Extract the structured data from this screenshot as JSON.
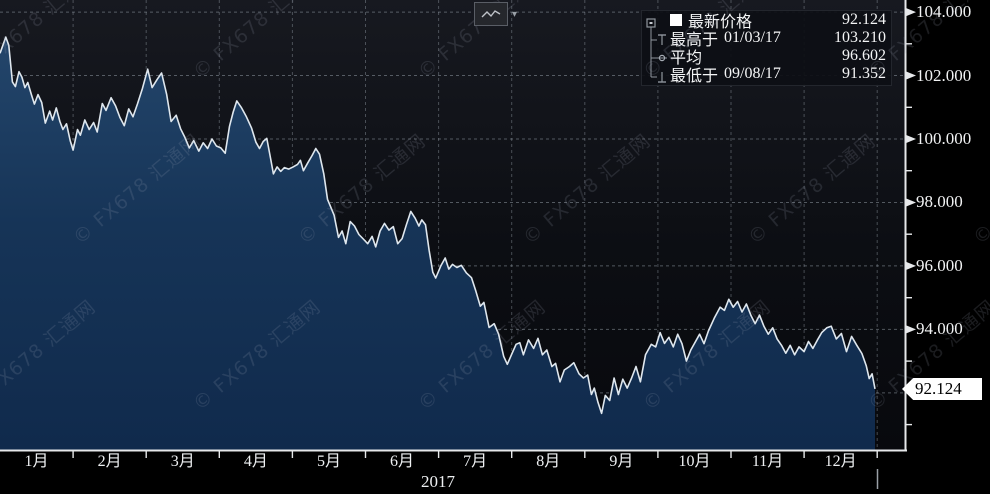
{
  "toolbar": {
    "caret": "▾",
    "icon": "line-chart-icon"
  },
  "legend": {
    "rows": [
      {
        "id": "latest",
        "marker": "white-square",
        "label": "最新价格",
        "date": "",
        "value": "92.124"
      },
      {
        "id": "high",
        "marker": "high-whisker",
        "label": "最高于",
        "date": "01/03/17",
        "value": "103.210"
      },
      {
        "id": "average",
        "marker": "average-dot",
        "label": "平均",
        "date": "",
        "value": "96.602"
      },
      {
        "id": "low",
        "marker": "low-whisker",
        "label": "最低于",
        "date": "09/08/17",
        "value": "91.352"
      }
    ]
  },
  "axes": {
    "y_tick_labels": [
      "104.000",
      "102.000",
      "100.000",
      "98.000",
      "96.000",
      "94.000"
    ],
    "y_tick_values": [
      104,
      102,
      100,
      98,
      96,
      94
    ],
    "y_minor": [
      103,
      101,
      99,
      97,
      95,
      93,
      91
    ],
    "grid_values": [
      104,
      102,
      100,
      98,
      96,
      94,
      92
    ],
    "x_labels": [
      "1月",
      "2月",
      "3月",
      "4月",
      "5月",
      "6月",
      "7月",
      "8月",
      "9月",
      "10月",
      "11月",
      "12月"
    ],
    "year_label": "2017",
    "price_tag": "92.124"
  },
  "watermark": {
    "text": "© FX678 汇通网"
  },
  "colors": {
    "background_top": "#171920",
    "background_bottom": "#08090d",
    "area_top": "#26496f",
    "area_mid": "#163457",
    "area_bottom": "#102a4c",
    "line": "#dfe7ee",
    "grid": "#98a2ac",
    "axis": "#e6e8ea",
    "tag_bg": "#ffffff",
    "tag_text": "#000000",
    "marker_gray": "#8f959d"
  },
  "chart_data": {
    "type": "area",
    "title": "",
    "xlabel": "2017",
    "ylabel": "",
    "x_unit": "month of 2017 (fractional, 0 = Jan 1)",
    "xlim": [
      0,
      12.38
    ],
    "ylim": [
      90.2,
      104.38
    ],
    "grid": true,
    "legend_position": "top-right",
    "annotations": {
      "latest_price": 92.124,
      "highest": {
        "date": "01/03/17",
        "value": 103.21
      },
      "average": 96.602,
      "lowest": {
        "date": "09/08/17",
        "value": 91.352
      }
    },
    "series": [
      {
        "name": "最新价格",
        "color": "#dfe7ee",
        "points": [
          [
            0.0,
            102.7
          ],
          [
            0.08,
            103.21
          ],
          [
            0.12,
            102.95
          ],
          [
            0.17,
            101.8
          ],
          [
            0.21,
            101.65
          ],
          [
            0.26,
            102.12
          ],
          [
            0.3,
            101.95
          ],
          [
            0.34,
            101.62
          ],
          [
            0.38,
            101.78
          ],
          [
            0.43,
            101.4
          ],
          [
            0.47,
            101.1
          ],
          [
            0.52,
            101.4
          ],
          [
            0.57,
            101.15
          ],
          [
            0.62,
            100.5
          ],
          [
            0.68,
            100.88
          ],
          [
            0.72,
            100.6
          ],
          [
            0.77,
            100.98
          ],
          [
            0.82,
            100.55
          ],
          [
            0.86,
            100.3
          ],
          [
            0.91,
            100.48
          ],
          [
            0.96,
            99.95
          ],
          [
            1.0,
            99.65
          ],
          [
            1.06,
            100.3
          ],
          [
            1.1,
            100.12
          ],
          [
            1.16,
            100.6
          ],
          [
            1.22,
            100.3
          ],
          [
            1.28,
            100.52
          ],
          [
            1.33,
            100.22
          ],
          [
            1.4,
            101.12
          ],
          [
            1.45,
            100.9
          ],
          [
            1.52,
            101.3
          ],
          [
            1.58,
            101.05
          ],
          [
            1.64,
            100.68
          ],
          [
            1.7,
            100.42
          ],
          [
            1.76,
            100.95
          ],
          [
            1.82,
            100.7
          ],
          [
            1.88,
            101.1
          ],
          [
            1.95,
            101.6
          ],
          [
            2.02,
            102.2
          ],
          [
            2.08,
            101.62
          ],
          [
            2.15,
            101.88
          ],
          [
            2.21,
            102.08
          ],
          [
            2.28,
            101.4
          ],
          [
            2.34,
            100.55
          ],
          [
            2.41,
            100.75
          ],
          [
            2.47,
            100.32
          ],
          [
            2.53,
            100.05
          ],
          [
            2.59,
            99.72
          ],
          [
            2.65,
            99.95
          ],
          [
            2.72,
            99.62
          ],
          [
            2.78,
            99.88
          ],
          [
            2.84,
            99.7
          ],
          [
            2.9,
            100.0
          ],
          [
            2.96,
            99.78
          ],
          [
            3.02,
            99.72
          ],
          [
            3.08,
            99.55
          ],
          [
            3.14,
            100.4
          ],
          [
            3.19,
            100.85
          ],
          [
            3.24,
            101.2
          ],
          [
            3.3,
            101.0
          ],
          [
            3.37,
            100.7
          ],
          [
            3.44,
            100.35
          ],
          [
            3.5,
            99.9
          ],
          [
            3.55,
            99.7
          ],
          [
            3.6,
            99.92
          ],
          [
            3.65,
            100.02
          ],
          [
            3.7,
            99.4
          ],
          [
            3.74,
            98.9
          ],
          [
            3.79,
            99.12
          ],
          [
            3.84,
            98.98
          ],
          [
            3.89,
            99.1
          ],
          [
            3.95,
            99.05
          ],
          [
            4.01,
            99.12
          ],
          [
            4.07,
            99.2
          ],
          [
            4.11,
            99.33
          ],
          [
            4.15,
            99.0
          ],
          [
            4.21,
            99.25
          ],
          [
            4.27,
            99.48
          ],
          [
            4.32,
            99.7
          ],
          [
            4.37,
            99.52
          ],
          [
            4.43,
            98.9
          ],
          [
            4.48,
            98.1
          ],
          [
            4.53,
            97.82
          ],
          [
            4.57,
            97.6
          ],
          [
            4.63,
            96.9
          ],
          [
            4.68,
            97.1
          ],
          [
            4.73,
            96.7
          ],
          [
            4.79,
            97.4
          ],
          [
            4.85,
            97.26
          ],
          [
            4.91,
            96.99
          ],
          [
            4.97,
            96.85
          ],
          [
            5.03,
            96.7
          ],
          [
            5.09,
            96.93
          ],
          [
            5.14,
            96.6
          ],
          [
            5.2,
            97.1
          ],
          [
            5.26,
            97.34
          ],
          [
            5.32,
            97.13
          ],
          [
            5.38,
            97.24
          ],
          [
            5.44,
            96.7
          ],
          [
            5.5,
            96.86
          ],
          [
            5.56,
            97.3
          ],
          [
            5.62,
            97.72
          ],
          [
            5.68,
            97.5
          ],
          [
            5.73,
            97.26
          ],
          [
            5.77,
            97.45
          ],
          [
            5.82,
            97.3
          ],
          [
            5.87,
            96.5
          ],
          [
            5.92,
            95.8
          ],
          [
            5.96,
            95.62
          ],
          [
            6.03,
            96.0
          ],
          [
            6.09,
            96.25
          ],
          [
            6.14,
            95.9
          ],
          [
            6.19,
            96.05
          ],
          [
            6.25,
            95.95
          ],
          [
            6.31,
            96.02
          ],
          [
            6.38,
            95.78
          ],
          [
            6.45,
            95.63
          ],
          [
            6.51,
            95.2
          ],
          [
            6.57,
            94.73
          ],
          [
            6.62,
            94.85
          ],
          [
            6.69,
            94.06
          ],
          [
            6.76,
            94.18
          ],
          [
            6.82,
            93.85
          ],
          [
            6.89,
            93.15
          ],
          [
            6.94,
            92.9
          ],
          [
            7.0,
            93.22
          ],
          [
            7.06,
            93.53
          ],
          [
            7.11,
            93.58
          ],
          [
            7.16,
            93.2
          ],
          [
            7.23,
            93.67
          ],
          [
            7.3,
            93.4
          ],
          [
            7.36,
            93.72
          ],
          [
            7.42,
            93.2
          ],
          [
            7.48,
            93.35
          ],
          [
            7.55,
            92.83
          ],
          [
            7.6,
            92.93
          ],
          [
            7.66,
            92.35
          ],
          [
            7.72,
            92.72
          ],
          [
            7.79,
            92.83
          ],
          [
            7.85,
            92.95
          ],
          [
            7.92,
            92.6
          ],
          [
            7.98,
            92.47
          ],
          [
            8.04,
            92.56
          ],
          [
            8.09,
            91.95
          ],
          [
            8.13,
            92.15
          ],
          [
            8.18,
            91.7
          ],
          [
            8.23,
            91.352
          ],
          [
            8.28,
            91.92
          ],
          [
            8.34,
            91.76
          ],
          [
            8.4,
            92.47
          ],
          [
            8.46,
            91.95
          ],
          [
            8.52,
            92.43
          ],
          [
            8.58,
            92.15
          ],
          [
            8.64,
            92.47
          ],
          [
            8.7,
            92.83
          ],
          [
            8.76,
            92.35
          ],
          [
            8.83,
            93.2
          ],
          [
            8.91,
            93.53
          ],
          [
            8.97,
            93.45
          ],
          [
            9.03,
            93.9
          ],
          [
            9.09,
            93.56
          ],
          [
            9.15,
            93.75
          ],
          [
            9.21,
            93.45
          ],
          [
            9.27,
            93.85
          ],
          [
            9.33,
            93.55
          ],
          [
            9.39,
            93.0
          ],
          [
            9.45,
            93.35
          ],
          [
            9.51,
            93.6
          ],
          [
            9.57,
            93.85
          ],
          [
            9.63,
            93.55
          ],
          [
            9.69,
            93.95
          ],
          [
            9.77,
            94.35
          ],
          [
            9.85,
            94.7
          ],
          [
            9.91,
            94.6
          ],
          [
            9.97,
            94.95
          ],
          [
            10.03,
            94.7
          ],
          [
            10.09,
            94.88
          ],
          [
            10.15,
            94.55
          ],
          [
            10.21,
            94.8
          ],
          [
            10.27,
            94.45
          ],
          [
            10.33,
            94.18
          ],
          [
            10.39,
            94.45
          ],
          [
            10.45,
            94.1
          ],
          [
            10.51,
            93.85
          ],
          [
            10.57,
            94.05
          ],
          [
            10.63,
            93.7
          ],
          [
            10.69,
            93.5
          ],
          [
            10.75,
            93.25
          ],
          [
            10.81,
            93.5
          ],
          [
            10.87,
            93.2
          ],
          [
            10.93,
            93.45
          ],
          [
            11.0,
            93.3
          ],
          [
            11.06,
            93.62
          ],
          [
            11.12,
            93.4
          ],
          [
            11.18,
            93.66
          ],
          [
            11.24,
            93.9
          ],
          [
            11.31,
            94.05
          ],
          [
            11.37,
            94.1
          ],
          [
            11.44,
            93.7
          ],
          [
            11.51,
            93.87
          ],
          [
            11.58,
            93.3
          ],
          [
            11.65,
            93.78
          ],
          [
            11.72,
            93.5
          ],
          [
            11.79,
            93.24
          ],
          [
            11.85,
            92.85
          ],
          [
            11.89,
            92.45
          ],
          [
            11.93,
            92.6
          ],
          [
            11.97,
            92.124
          ]
        ]
      }
    ]
  }
}
